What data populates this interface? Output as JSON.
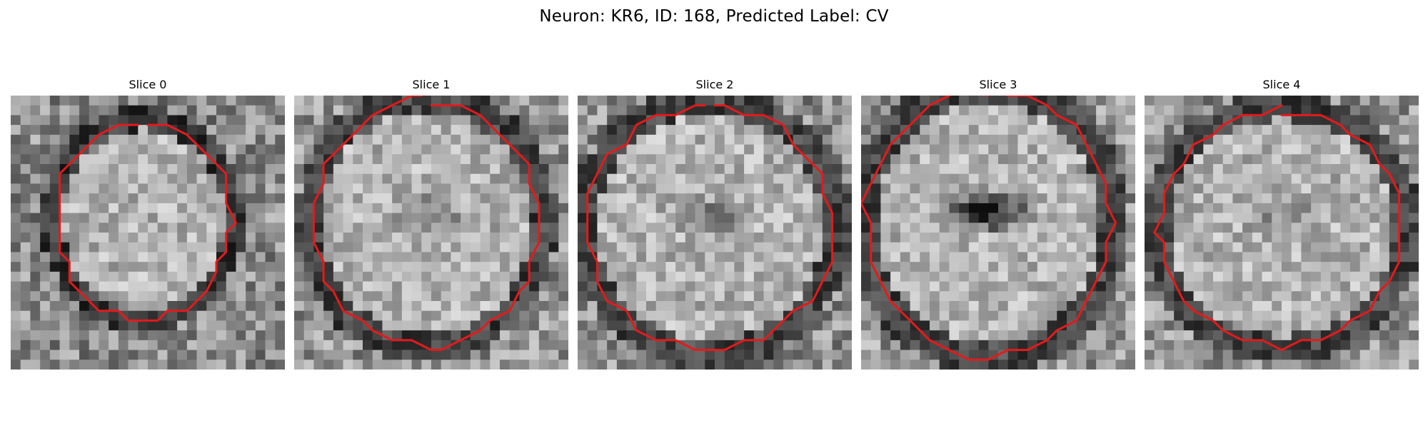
{
  "figure": {
    "title": "Neuron: KR6, ID: 168, Predicted Label: CV"
  },
  "panels": [
    {
      "title": "Slice 0"
    },
    {
      "title": "Slice 1"
    },
    {
      "title": "Slice 2"
    },
    {
      "title": "Slice 3"
    },
    {
      "title": "Slice 4"
    }
  ],
  "colors": {
    "contour": "#e41a1c",
    "background": "#ffffff"
  }
}
